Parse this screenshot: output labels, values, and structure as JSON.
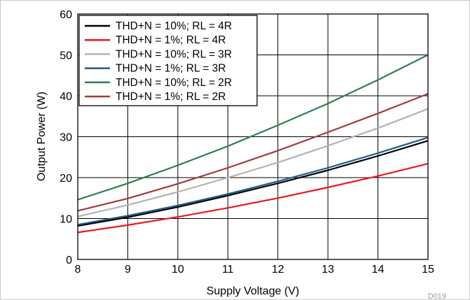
{
  "chart_data": {
    "type": "line",
    "title": "",
    "xlabel": "Supply Voltage (V)",
    "ylabel": "Output Power (W)",
    "xlim": [
      8,
      15
    ],
    "ylim": [
      0,
      60
    ],
    "x_ticks": [
      8,
      9,
      10,
      11,
      12,
      13,
      14,
      15
    ],
    "y_ticks": [
      0,
      10,
      20,
      30,
      40,
      50,
      60
    ],
    "grid": true,
    "legend_position": "top-left",
    "figure_code": "D019",
    "x": [
      8,
      9,
      10,
      11,
      12,
      13,
      14,
      15
    ],
    "series": [
      {
        "name": "THD+N = 10%; RL = 4R",
        "color": "#000000",
        "values": [
          8.2,
          10.3,
          12.8,
          15.6,
          18.6,
          21.8,
          25.3,
          29.0
        ]
      },
      {
        "name": "THD+N = 1%; RL = 4R",
        "color": "#e8191f",
        "values": [
          6.6,
          8.4,
          10.4,
          12.6,
          15.0,
          17.6,
          20.4,
          23.4
        ]
      },
      {
        "name": "THD+N = 10%; RL = 3R",
        "color": "#b3b3b3",
        "values": [
          10.5,
          13.3,
          16.5,
          20.0,
          23.7,
          27.8,
          32.1,
          36.8
        ]
      },
      {
        "name": "THD+N = 1%; RL = 3R",
        "color": "#1f5a85",
        "values": [
          8.5,
          10.7,
          13.2,
          16.0,
          19.1,
          22.4,
          26.0,
          29.8
        ]
      },
      {
        "name": "THD+N = 10%; RL = 2R",
        "color": "#2e7d4f",
        "values": [
          14.6,
          18.6,
          23.0,
          27.7,
          32.8,
          38.1,
          43.9,
          50.0
        ]
      },
      {
        "name": "THD+N = 1%; RL = 2R",
        "color": "#a33a3a",
        "values": [
          11.9,
          14.9,
          18.5,
          22.4,
          26.6,
          31.1,
          35.7,
          40.5
        ]
      }
    ]
  }
}
